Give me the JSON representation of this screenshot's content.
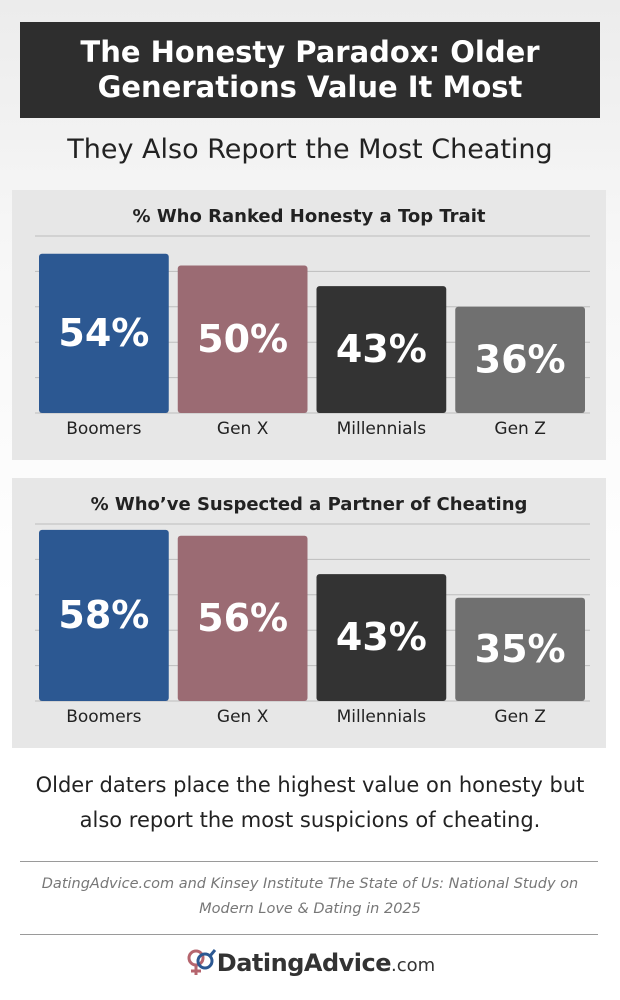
{
  "header": {
    "title": "The Honesty Paradox: Older Generations Value It Most",
    "subtitle": "They Also Report the Most Cheating"
  },
  "chart_data": [
    {
      "type": "bar",
      "title": "% Who Ranked Honesty a Top Trait",
      "categories": [
        "Boomers",
        "Gen X",
        "Millennials",
        "Gen Z"
      ],
      "values": [
        54,
        50,
        43,
        36
      ],
      "value_labels": [
        "54%",
        "50%",
        "43%",
        "36%"
      ],
      "colors": [
        "#2c5892",
        "#9b6b73",
        "#333333",
        "#707070"
      ],
      "ylim": [
        0,
        60
      ],
      "grid": true
    },
    {
      "type": "bar",
      "title": "% Who’ve Suspected a Partner of Cheating",
      "categories": [
        "Boomers",
        "Gen X",
        "Millennials",
        "Gen Z"
      ],
      "values": [
        58,
        56,
        43,
        35
      ],
      "value_labels": [
        "58%",
        "56%",
        "43%",
        "35%"
      ],
      "colors": [
        "#2c5892",
        "#9b6b73",
        "#333333",
        "#707070"
      ],
      "ylim": [
        0,
        60
      ],
      "grid": true
    }
  ],
  "note": "Older daters place the highest value on honesty but also report the most suspicions of cheating.",
  "source": "DatingAdvice.com and Kinsey Institute The State of Us: National Study on Modern Love & Dating in 2025",
  "logo": {
    "name": "DatingAdvice",
    "suffix": ".com"
  }
}
